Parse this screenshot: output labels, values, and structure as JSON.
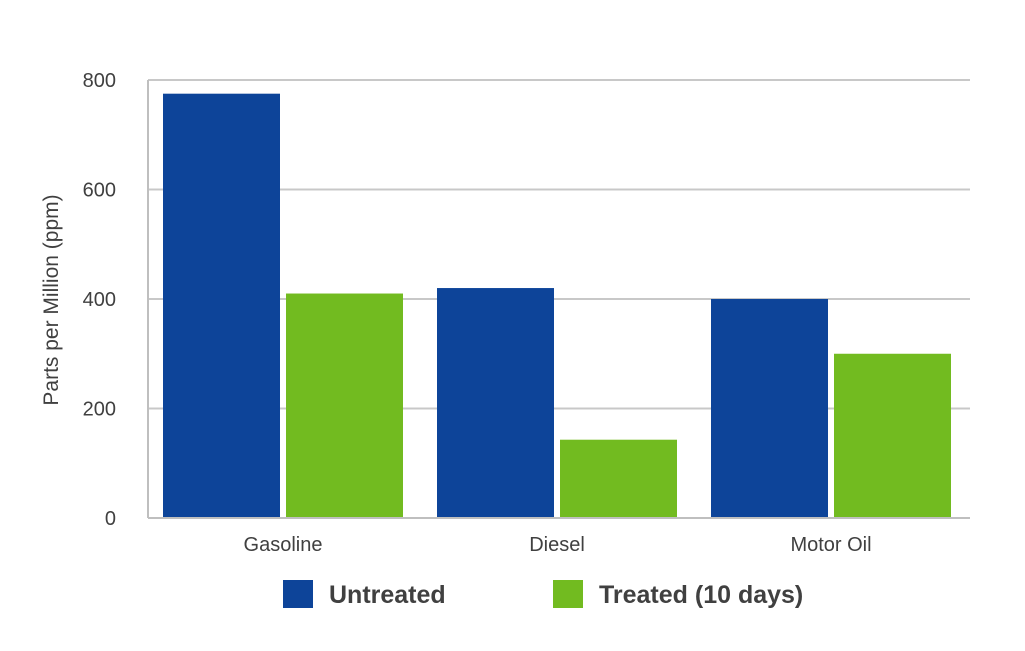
{
  "chart_data": {
    "type": "bar",
    "categories": [
      "Gasoline",
      "Diesel",
      "Motor Oil"
    ],
    "series": [
      {
        "name": "Untreated",
        "values": [
          775,
          420,
          400
        ],
        "color": "#0d4499"
      },
      {
        "name": "Treated (10 days)",
        "values": [
          410,
          143,
          300
        ],
        "color": "#72bb20"
      }
    ],
    "title": "",
    "xlabel": "",
    "ylabel": "Parts per Million (ppm)",
    "ylim": [
      0,
      800
    ],
    "yticks": [
      0,
      200,
      400,
      600,
      800
    ],
    "ytick_labels": [
      "0",
      "200",
      "400",
      "600",
      "800"
    ],
    "grid": true,
    "legend_position": "bottom",
    "colors": {
      "grid": "#c8c8c8",
      "axis": "#bfbfbf",
      "text": "#404040"
    }
  }
}
